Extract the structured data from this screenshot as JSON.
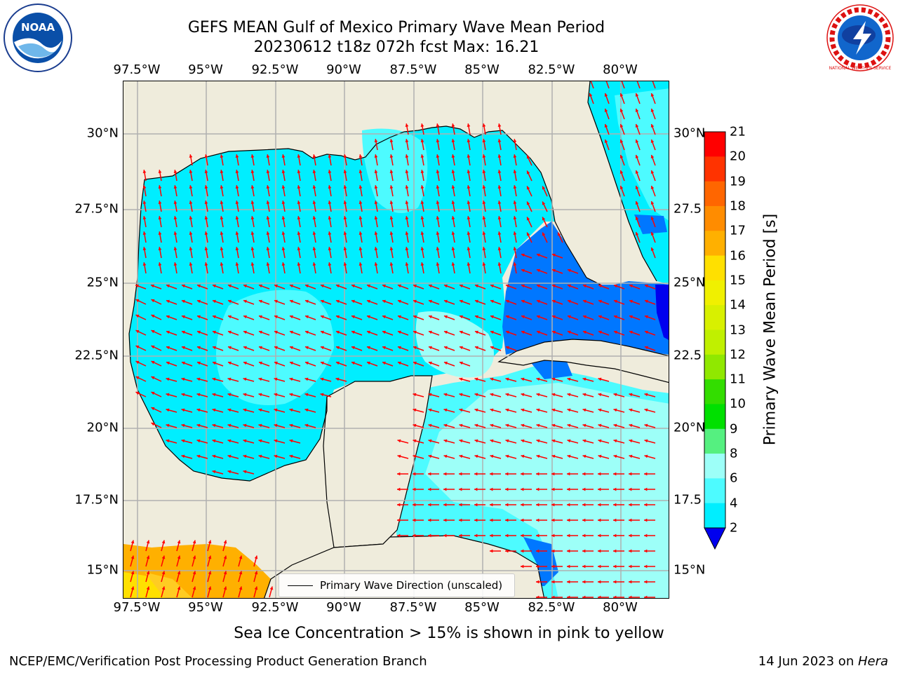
{
  "title": {
    "line1": "GEFS MEAN Gulf of Mexico Primary Wave Mean Period",
    "line2": "20230612 t18z 072h fcst   Max: 16.21"
  },
  "map": {
    "lon_labels": [
      "97.5°W",
      "95°W",
      "92.5°W",
      "90°W",
      "87.5°W",
      "85°W",
      "82.5°W",
      "80°W"
    ],
    "lat_labels_left": [
      "30°N",
      "27.5°N",
      "25°N",
      "22.5°N",
      "20°N",
      "17.5°N",
      "15°N"
    ],
    "lat_labels_right": [
      "30°N",
      "27.5",
      "25°N",
      "22.5",
      "20°N",
      "17.5",
      "15°N"
    ],
    "legend_label": "Primary Wave Direction (unscaled)",
    "land_color": "#efecdc",
    "arrow_color": "#ff0000"
  },
  "colorbar": {
    "label": "Primary Wave Mean Period [s]",
    "ticks": [
      "21",
      "20",
      "19",
      "18",
      "17",
      "16",
      "15",
      "14",
      "13",
      "12",
      "11",
      "10",
      "9",
      "8",
      "6",
      "4",
      "2"
    ],
    "colors": [
      "#ff0000",
      "#ff3300",
      "#ff6600",
      "#ff8c00",
      "#ffb000",
      "#ffe000",
      "#f0f000",
      "#d8f000",
      "#c0f000",
      "#90e800",
      "#33dd00",
      "#00e000",
      "#55f080",
      "#9dfff8",
      "#4dfbff",
      "#00eeff",
      "#0077ff"
    ],
    "extend_color": "#0000ee"
  },
  "subtitle": "Sea Ice Concentration > 15% is shown in pink to yellow",
  "footer": {
    "left": "NCEP/EMC/Verification Post Processing Product Generation Branch",
    "right_date": "14 Jun 2023 on ",
    "right_host": "Hera"
  },
  "logos": {
    "noaa": "NOAA",
    "nws": "NATIONAL WEATHER SERVICE"
  }
}
